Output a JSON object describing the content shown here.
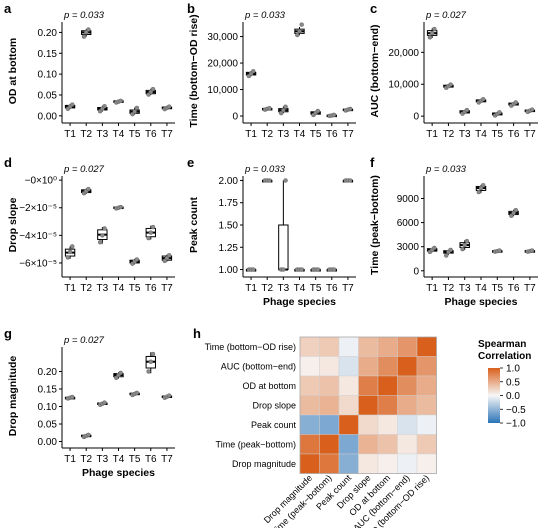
{
  "chart_data": [
    {
      "id": "a",
      "type": "boxplot",
      "panel": "a",
      "ptext": "p = 0.033",
      "ylabel": "OD at bottom",
      "xlabel": "",
      "categories": [
        "T1",
        "T2",
        "T3",
        "T4",
        "T5",
        "T6",
        "T7"
      ],
      "yticks": [
        0.0,
        0.05,
        0.1,
        0.15,
        0.2
      ],
      "ytick_labels": [
        "0.00",
        "0.05",
        "0.10",
        "0.15",
        "0.20"
      ],
      "ylim": [
        -0.01,
        0.225
      ],
      "boxes": [
        {
          "min": 0.016,
          "q1": 0.019,
          "median": 0.022,
          "q3": 0.025,
          "max": 0.028,
          "points": [
            0.017,
            0.022,
            0.027
          ]
        },
        {
          "min": 0.19,
          "q1": 0.195,
          "median": 0.2,
          "q3": 0.204,
          "max": 0.208,
          "points": [
            0.19,
            0.2,
            0.207
          ]
        },
        {
          "min": 0.01,
          "q1": 0.014,
          "median": 0.017,
          "q3": 0.02,
          "max": 0.024,
          "points": [
            0.011,
            0.017,
            0.023
          ]
        },
        {
          "min": 0.031,
          "q1": 0.033,
          "median": 0.034,
          "q3": 0.036,
          "max": 0.037,
          "points": [
            0.032,
            0.034,
            0.036
          ]
        },
        {
          "min": 0.003,
          "q1": 0.006,
          "median": 0.01,
          "q3": 0.014,
          "max": 0.02,
          "points": [
            0.004,
            0.01,
            0.019
          ]
        },
        {
          "min": 0.05,
          "q1": 0.053,
          "median": 0.057,
          "q3": 0.061,
          "max": 0.065,
          "points": [
            0.051,
            0.057,
            0.064
          ]
        },
        {
          "min": 0.015,
          "q1": 0.017,
          "median": 0.019,
          "q3": 0.021,
          "max": 0.023,
          "points": [
            0.016,
            0.019,
            0.022
          ]
        }
      ]
    },
    {
      "id": "b",
      "type": "boxplot",
      "panel": "b",
      "ptext": "p = 0.033",
      "ylabel": "Time (bottom−OD rise)",
      "xlabel": "",
      "categories": [
        "T1",
        "T2",
        "T3",
        "T4",
        "T5",
        "T6",
        "T7"
      ],
      "yticks": [
        0,
        10000,
        20000,
        30000
      ],
      "ytick_labels": [
        "0",
        "10,000",
        "20,000",
        "30,000"
      ],
      "ylim": [
        -1500,
        35500
      ],
      "boxes": [
        {
          "min": 15000,
          "q1": 15500,
          "median": 16000,
          "q3": 16500,
          "max": 17000,
          "points": [
            15100,
            16000,
            16900
          ]
        },
        {
          "min": 2300,
          "q1": 2500,
          "median": 2700,
          "q3": 2850,
          "max": 3000,
          "points": [
            2400,
            2700,
            2950
          ]
        },
        {
          "min": 1000,
          "q1": 1600,
          "median": 2200,
          "q3": 2800,
          "max": 3600,
          "points": [
            1100,
            2200,
            3500
          ]
        },
        {
          "min": 30500,
          "q1": 31200,
          "median": 32000,
          "q3": 32800,
          "max": 33600,
          "points": [
            30600,
            32000,
            34500
          ]
        },
        {
          "min": 300,
          "q1": 700,
          "median": 1200,
          "q3": 1600,
          "max": 2000,
          "points": [
            400,
            1200,
            1900
          ]
        },
        {
          "min": 0,
          "q1": 100,
          "median": 200,
          "q3": 350,
          "max": 500,
          "points": [
            50,
            200,
            450
          ]
        },
        {
          "min": 2000,
          "q1": 2200,
          "median": 2400,
          "q3": 2600,
          "max": 2750,
          "points": [
            2100,
            2400,
            2700
          ]
        }
      ]
    },
    {
      "id": "c",
      "type": "boxplot",
      "panel": "c",
      "ptext": "p = 0.027",
      "ylabel": "AUC (bottom−end)",
      "xlabel": "",
      "categories": [
        "T1",
        "T2",
        "T3",
        "T4",
        "T5",
        "T6",
        "T7"
      ],
      "yticks": [
        0,
        10000,
        20000
      ],
      "ytick_labels": [
        "0",
        "10,000",
        "20,000"
      ],
      "ylim": [
        -1200,
        29500
      ],
      "boxes": [
        {
          "min": 24500,
          "q1": 25300,
          "median": 26000,
          "q3": 26800,
          "max": 27500,
          "points": [
            24700,
            26000,
            27300
          ]
        },
        {
          "min": 8800,
          "q1": 9100,
          "median": 9400,
          "q3": 9700,
          "max": 10000,
          "points": [
            8900,
            9400,
            9900
          ]
        },
        {
          "min": 700,
          "q1": 1000,
          "median": 1300,
          "q3": 1700,
          "max": 2000,
          "points": [
            800,
            1300,
            1900
          ]
        },
        {
          "min": 4200,
          "q1": 4500,
          "median": 4800,
          "q3": 5100,
          "max": 5400,
          "points": [
            4300,
            4800,
            5300
          ]
        },
        {
          "min": 100,
          "q1": 400,
          "median": 700,
          "q3": 1000,
          "max": 1300,
          "points": [
            200,
            700,
            1200
          ]
        },
        {
          "min": 3200,
          "q1": 3500,
          "median": 3800,
          "q3": 4100,
          "max": 4400,
          "points": [
            3300,
            3800,
            4300
          ]
        },
        {
          "min": 1300,
          "q1": 1500,
          "median": 1700,
          "q3": 1900,
          "max": 2100,
          "points": [
            1350,
            1700,
            2050
          ]
        }
      ]
    },
    {
      "id": "d",
      "type": "boxplot",
      "panel": "d",
      "ptext": "p = 0.027",
      "ylabel": "Drop slope",
      "xlabel": "",
      "categories": [
        "T1",
        "T2",
        "T3",
        "T4",
        "T5",
        "T6",
        "T7"
      ],
      "yticks": [
        0,
        -2e-05,
        -4e-05,
        -6e-05
      ],
      "ytick_labels": [
        "−0×10⁰",
        "−2×10⁻⁵",
        "−4×10⁻⁵",
        "−6×10⁻⁵"
      ],
      "ylim": [
        -6.8e-05,
        3e-06
      ],
      "boxes": [
        {
          "min": -5.7e-05,
          "q1": -5.5e-05,
          "median": -5.25e-05,
          "q3": -5e-05,
          "max": -4.8e-05,
          "points": [
            -5.6e-05,
            -5.2e-05,
            -4.8e-05
          ]
        },
        {
          "min": -1e-05,
          "q1": -9e-06,
          "median": -8e-06,
          "q3": -7e-06,
          "max": -6e-06,
          "points": [
            -9.5e-06,
            -8e-06,
            -6.5e-06
          ]
        },
        {
          "min": -4.6e-05,
          "q1": -4.3e-05,
          "median": -3.95e-05,
          "q3": -3.6e-05,
          "max": -3.4e-05,
          "points": [
            -4.5e-05,
            -4e-05,
            -3.5e-05
          ]
        },
        {
          "min": -2.1e-05,
          "q1": -2.05e-05,
          "median": -2e-05,
          "q3": -1.95e-05,
          "max": -1.9e-05,
          "points": [
            -2.05e-05,
            -2e-05,
            -1.95e-05
          ]
        },
        {
          "min": -6.1e-05,
          "q1": -6e-05,
          "median": -5.9e-05,
          "q3": -5.8e-05,
          "max": -5.7e-05,
          "points": [
            -6.05e-05,
            -5.9e-05,
            -5.75e-05
          ]
        },
        {
          "min": -4.3e-05,
          "q1": -4.1e-05,
          "median": -3.8e-05,
          "q3": -3.5e-05,
          "max": -3.3e-05,
          "points": [
            -4.2e-05,
            -3.8e-05,
            -3.4e-05
          ]
        },
        {
          "min": -5.9e-05,
          "q1": -5.8e-05,
          "median": -5.65e-05,
          "q3": -5.5e-05,
          "max": -5.4e-05,
          "points": [
            -5.85e-05,
            -5.65e-05,
            -5.45e-05
          ]
        }
      ]
    },
    {
      "id": "e",
      "type": "boxplot",
      "panel": "e",
      "ptext": "p = 0.033",
      "ylabel": "Peak count",
      "xlabel": "Phage species",
      "categories": [
        "T1",
        "T2",
        "T3",
        "T4",
        "T5",
        "T6",
        "T7"
      ],
      "yticks": [
        1.0,
        1.25,
        1.5,
        1.75,
        2.0
      ],
      "ytick_labels": [
        "1.00",
        "1.25",
        "1.50",
        "1.75",
        "2.00"
      ],
      "ylim": [
        0.95,
        2.05
      ],
      "boxes": [
        {
          "min": 1.0,
          "q1": 1.0,
          "median": 1.0,
          "q3": 1.0,
          "max": 1.0,
          "points": [
            1.0,
            1.0,
            1.0
          ]
        },
        {
          "min": 2.0,
          "q1": 2.0,
          "median": 2.0,
          "q3": 2.0,
          "max": 2.0,
          "points": [
            2.0,
            2.0,
            2.0
          ]
        },
        {
          "min": 1.0,
          "q1": 1.0,
          "median": 1.0,
          "q3": 1.5,
          "max": 2.0,
          "points": [
            1.0,
            1.0,
            2.0
          ]
        },
        {
          "min": 1.0,
          "q1": 1.0,
          "median": 1.0,
          "q3": 1.0,
          "max": 1.0,
          "points": [
            1.0,
            1.0,
            1.0
          ]
        },
        {
          "min": 1.0,
          "q1": 1.0,
          "median": 1.0,
          "q3": 1.0,
          "max": 1.0,
          "points": [
            1.0,
            1.0,
            1.0
          ]
        },
        {
          "min": 1.0,
          "q1": 1.0,
          "median": 1.0,
          "q3": 1.0,
          "max": 1.0,
          "points": [
            1.0,
            1.0,
            1.0
          ]
        },
        {
          "min": 2.0,
          "q1": 2.0,
          "median": 2.0,
          "q3": 2.0,
          "max": 2.0,
          "points": [
            2.0,
            2.0,
            2.0
          ]
        }
      ]
    },
    {
      "id": "f",
      "type": "boxplot",
      "panel": "f",
      "ptext": "p = 0.033",
      "ylabel": "Time (peak−bottom)",
      "xlabel": "Phage species",
      "categories": [
        "T1",
        "T2",
        "T3",
        "T4",
        "T5",
        "T6",
        "T7"
      ],
      "yticks": [
        0,
        3000,
        6000,
        9000
      ],
      "ytick_labels": [
        "0",
        "3000",
        "6000",
        "9000"
      ],
      "ylim": [
        -400,
        11800
      ],
      "boxes": [
        {
          "min": 2300,
          "q1": 2450,
          "median": 2600,
          "q3": 2750,
          "max": 2900,
          "points": [
            2350,
            2600,
            2850
          ]
        },
        {
          "min": 2000,
          "q1": 2200,
          "median": 2350,
          "q3": 2500,
          "max": 2650,
          "points": [
            1900,
            2350,
            2600
          ]
        },
        {
          "min": 2600,
          "q1": 2900,
          "median": 3200,
          "q3": 3500,
          "max": 3800,
          "points": [
            2700,
            3200,
            3700
          ]
        },
        {
          "min": 9700,
          "q1": 10000,
          "median": 10300,
          "q3": 10500,
          "max": 10700,
          "points": [
            9800,
            10300,
            10650
          ]
        },
        {
          "min": 2350,
          "q1": 2400,
          "median": 2450,
          "q3": 2500,
          "max": 2550,
          "points": [
            2380,
            2450,
            2520
          ]
        },
        {
          "min": 6800,
          "q1": 7000,
          "median": 7200,
          "q3": 7400,
          "max": 7600,
          "points": [
            6850,
            7200,
            7550
          ]
        },
        {
          "min": 2350,
          "q1": 2400,
          "median": 2450,
          "q3": 2500,
          "max": 2550,
          "points": [
            2380,
            2450,
            2520
          ]
        }
      ]
    },
    {
      "id": "g",
      "type": "boxplot",
      "panel": "g",
      "ptext": "p = 0.027",
      "ylabel": "Drop magnitude",
      "xlabel": "Phage species",
      "categories": [
        "T1",
        "T2",
        "T3",
        "T4",
        "T5",
        "T6",
        "T7"
      ],
      "yticks": [
        0.0,
        0.05,
        0.1,
        0.15,
        0.2
      ],
      "ytick_labels": [
        "0.00",
        "0.05",
        "0.10",
        "0.15",
        "0.20"
      ],
      "ylim": [
        -0.01,
        0.27
      ],
      "boxes": [
        {
          "min": 0.122,
          "q1": 0.124,
          "median": 0.125,
          "q3": 0.126,
          "max": 0.128,
          "points": [
            0.123,
            0.125,
            0.127
          ]
        },
        {
          "min": 0.012,
          "q1": 0.014,
          "median": 0.016,
          "q3": 0.018,
          "max": 0.02,
          "points": [
            0.013,
            0.016,
            0.019
          ]
        },
        {
          "min": 0.104,
          "q1": 0.106,
          "median": 0.108,
          "q3": 0.11,
          "max": 0.112,
          "points": [
            0.105,
            0.108,
            0.111
          ]
        },
        {
          "min": 0.18,
          "q1": 0.185,
          "median": 0.19,
          "q3": 0.194,
          "max": 0.198,
          "points": [
            0.182,
            0.19,
            0.196
          ]
        },
        {
          "min": 0.132,
          "q1": 0.134,
          "median": 0.136,
          "q3": 0.138,
          "max": 0.14,
          "points": [
            0.133,
            0.136,
            0.139
          ]
        },
        {
          "min": 0.195,
          "q1": 0.21,
          "median": 0.228,
          "q3": 0.243,
          "max": 0.255,
          "points": [
            0.2,
            0.228,
            0.25
          ]
        },
        {
          "min": 0.124,
          "q1": 0.126,
          "median": 0.128,
          "q3": 0.13,
          "max": 0.132,
          "points": [
            0.125,
            0.128,
            0.131
          ]
        }
      ]
    },
    {
      "id": "h",
      "type": "heatmap",
      "panel": "h",
      "rows": [
        "Time (bottom−OD rise)",
        "AUC (bottom−end)",
        "OD at bottom",
        "Drop slope",
        "Peak count",
        "Time (peak−bottom)",
        "Drop magnitude"
      ],
      "cols": [
        "Drop magnitude",
        "Time (peak−bottom)",
        "Peak count",
        "Drop slope",
        "OD at bottom",
        "AUC (bottom−end)",
        "Time (bottom−OD rise)"
      ],
      "values": [
        [
          0.25,
          0.3,
          -0.05,
          0.4,
          0.5,
          0.65,
          1.0
        ],
        [
          0.05,
          0.1,
          -0.15,
          0.5,
          0.7,
          1.0,
          0.65
        ],
        [
          0.3,
          0.35,
          0.1,
          0.8,
          1.0,
          0.7,
          0.5
        ],
        [
          0.4,
          0.45,
          0.2,
          1.0,
          0.8,
          0.5,
          0.4
        ],
        [
          -0.55,
          -0.6,
          1.0,
          0.2,
          0.1,
          -0.15,
          -0.05
        ],
        [
          0.85,
          1.0,
          -0.6,
          0.45,
          0.35,
          0.1,
          0.3
        ],
        [
          1.0,
          0.85,
          -0.55,
          0.1,
          0.05,
          -0.05,
          0.05
        ]
      ],
      "legend_title": [
        "Spearman",
        "Correlation"
      ],
      "legend_ticks": [
        1.0,
        0.5,
        0.0,
        -0.5,
        -1.0
      ],
      "legend_tick_labels": [
        "1.0",
        "0.5",
        "0.0",
        "−0.5",
        "−1.0"
      ],
      "color_low": "#2b74b7",
      "color_mid": "#f7f7f7",
      "color_high": "#d9601c"
    }
  ]
}
